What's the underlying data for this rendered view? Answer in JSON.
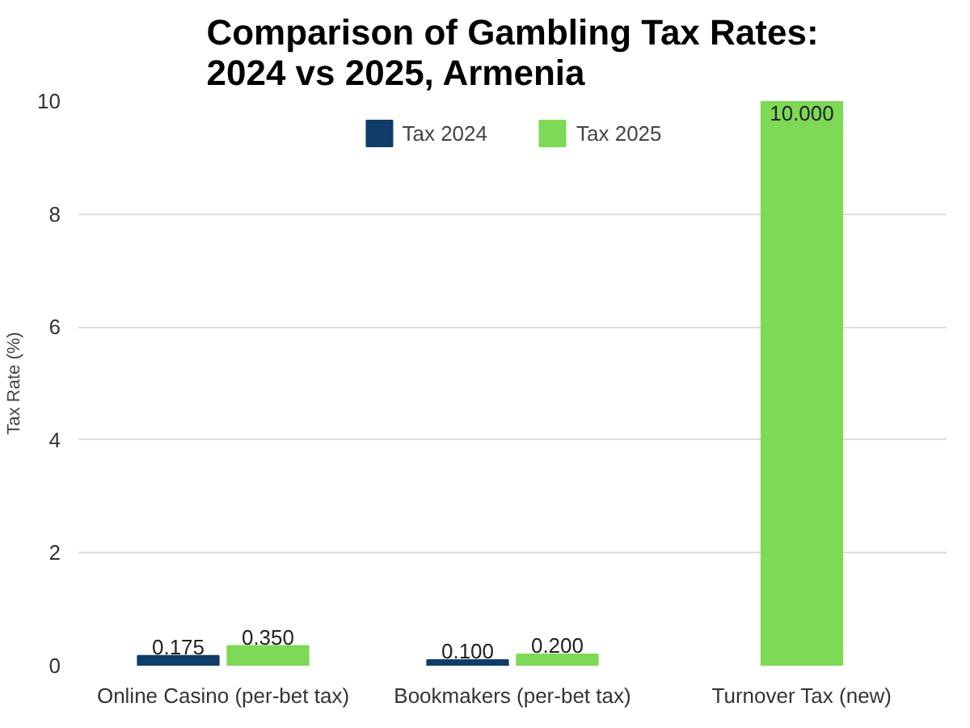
{
  "chart_data": {
    "type": "bar",
    "title": "Comparison of Gambling Tax Rates: 2024 vs 2025, Armenia",
    "ylabel": "Tax Rate (%)",
    "categories": [
      "Online Casino (per-bet tax)",
      "Bookmakers (per-bet tax)",
      "Turnover Tax (new)"
    ],
    "series": [
      {
        "name": "Tax 2024",
        "color": "#0f3d68",
        "values": [
          0.175,
          0.1,
          null
        ],
        "value_labels": [
          "0.175",
          "0.100",
          null
        ]
      },
      {
        "name": "Tax 2025",
        "color": "#7ed957",
        "values": [
          0.35,
          0.2,
          10.0
        ],
        "value_labels": [
          "0.350",
          "0.200",
          "10.000"
        ]
      }
    ],
    "ylim": [
      0,
      10
    ],
    "yticks": [
      0,
      2,
      4,
      6,
      8,
      10
    ],
    "grid": "y",
    "legend": "top"
  }
}
